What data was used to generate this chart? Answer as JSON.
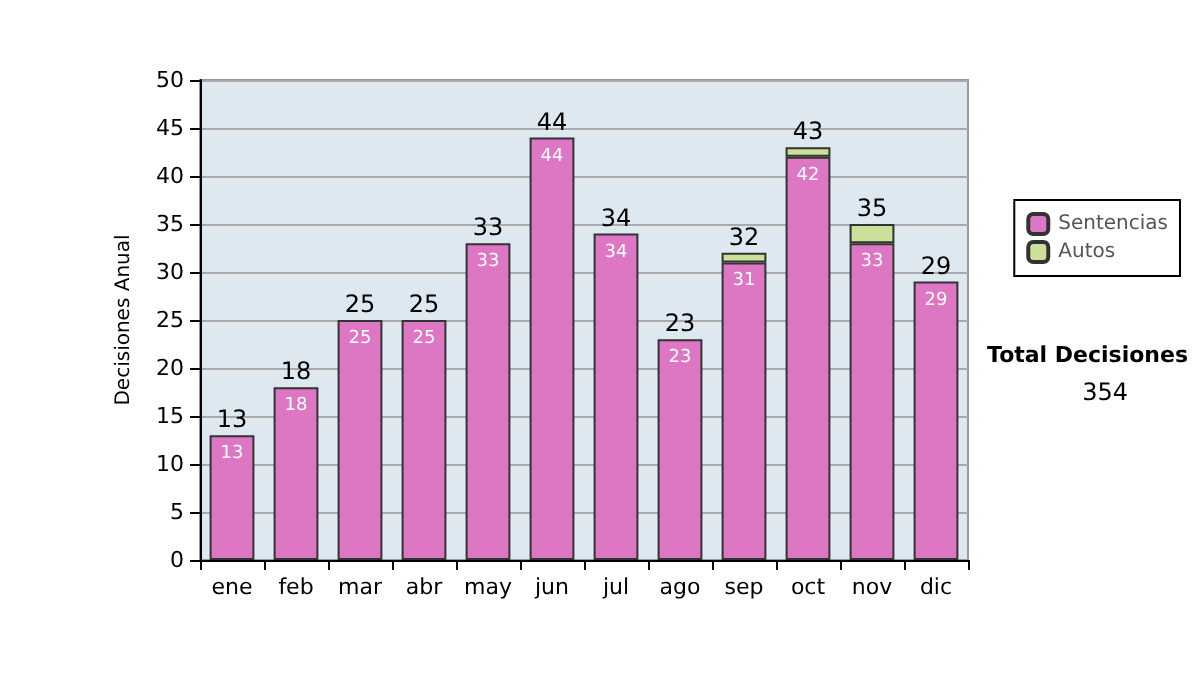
{
  "chart_data": {
    "type": "bar",
    "stacked": true,
    "ylabel": "Decisiones Anual",
    "categories": [
      "ene",
      "feb",
      "mar",
      "abr",
      "may",
      "jun",
      "jul",
      "ago",
      "sep",
      "oct",
      "nov",
      "dic"
    ],
    "series": [
      {
        "name": "Sentencias",
        "color": "#dd77c4",
        "values": [
          13,
          18,
          25,
          25,
          33,
          44,
          34,
          23,
          31,
          42,
          33,
          29
        ],
        "value_labels": [
          "13",
          "18",
          "25",
          "25",
          "33",
          "44",
          "34",
          "23",
          "31",
          "42",
          "33",
          "29"
        ]
      },
      {
        "name": "Autos",
        "color": "#cce099",
        "values": [
          null,
          null,
          null,
          null,
          null,
          null,
          null,
          null,
          1,
          1,
          2,
          null
        ]
      }
    ],
    "totals": [
      "13",
      "18",
      "25",
      "25",
      "33",
      "44",
      "34",
      "23",
      "32",
      "43",
      "35",
      "29"
    ],
    "ylim": [
      0,
      50
    ],
    "yticks": [
      0,
      5,
      10,
      15,
      20,
      25,
      30,
      35,
      40,
      45,
      50
    ],
    "grid": "y",
    "legend": "right",
    "annotations": [
      "Total Decisiones",
      "354"
    ]
  }
}
